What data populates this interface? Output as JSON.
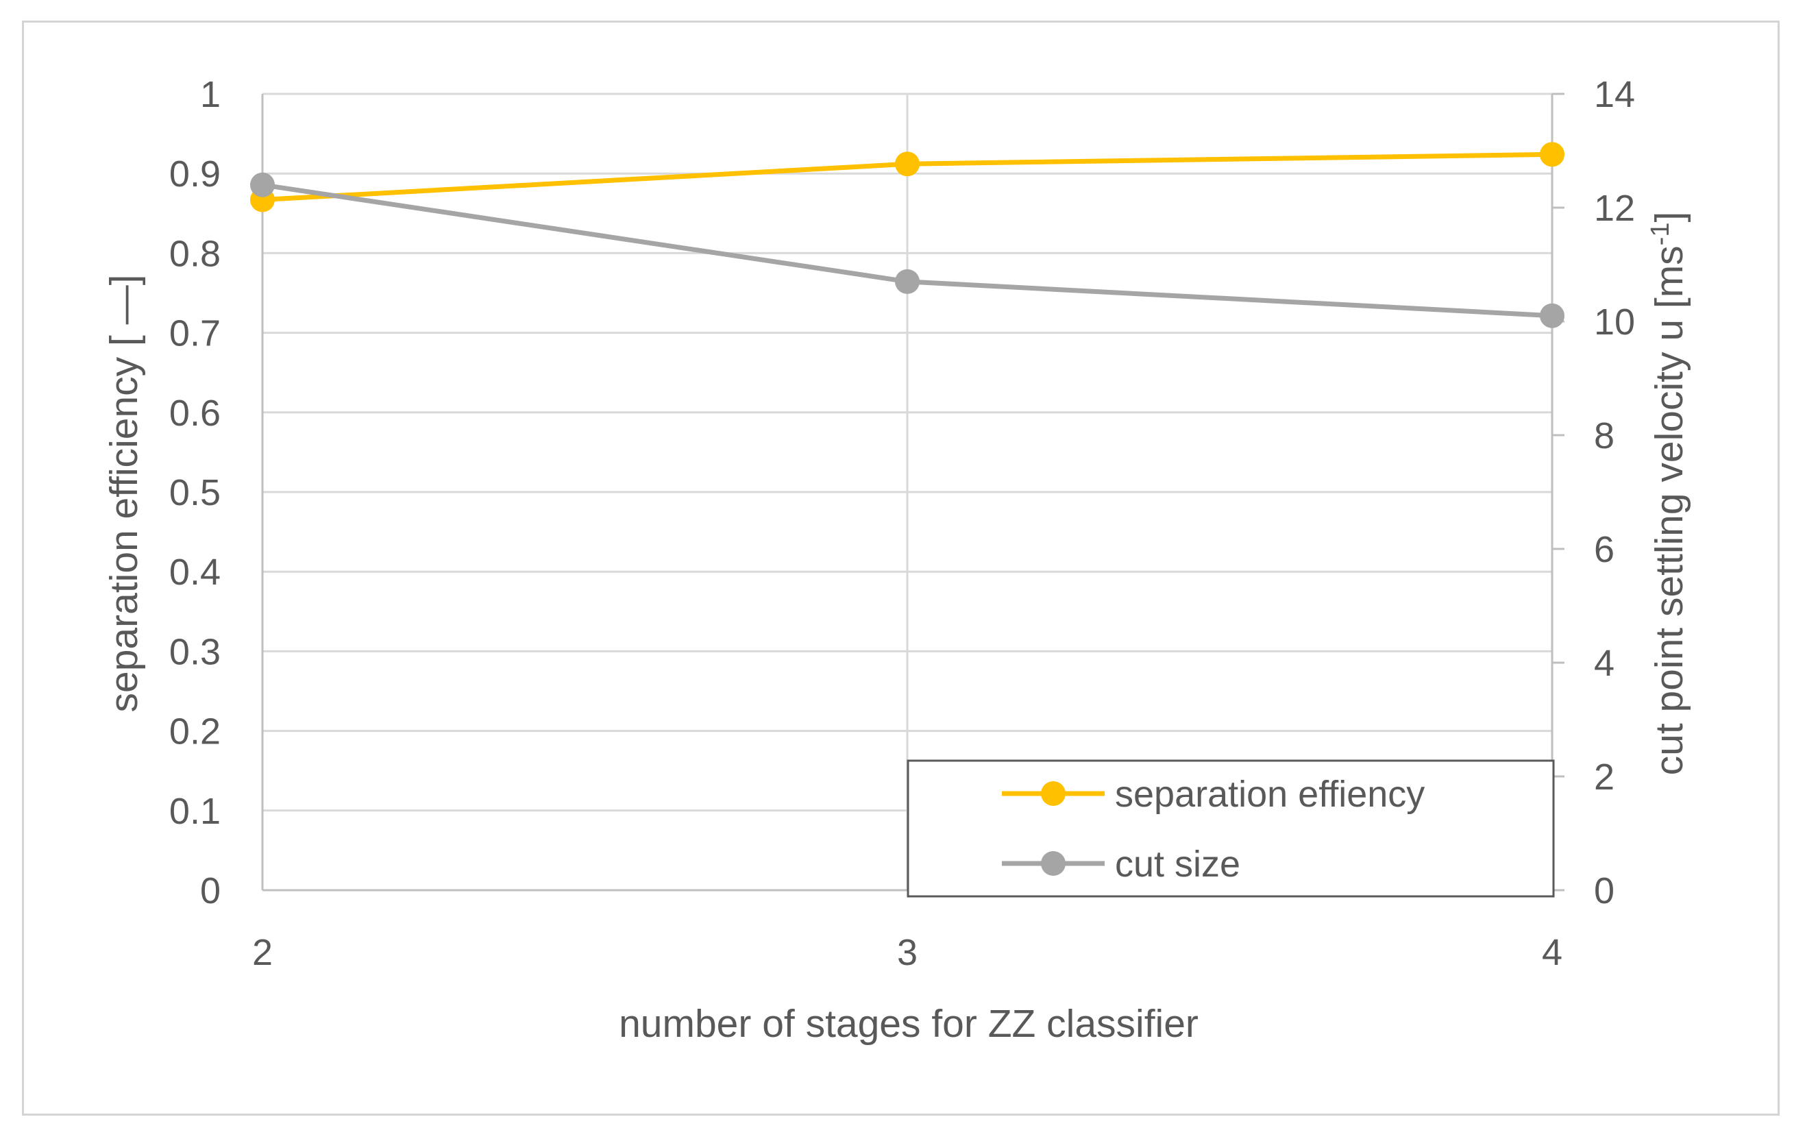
{
  "chart_data": {
    "type": "line",
    "xlabel": "number of stages for ZZ classifier",
    "ylabel_left": "separation efficiency [ —]",
    "ylabel_right_main": "cut point settling velocity u  [ms",
    "ylabel_right_sup": "-1",
    "ylabel_right_close": "]",
    "categories": [
      "2",
      "3",
      "4"
    ],
    "x": [
      2,
      3,
      4
    ],
    "y_left_range": [
      0,
      1
    ],
    "y_left_ticks": [
      "0",
      "0.1",
      "0.2",
      "0.3",
      "0.4",
      "0.5",
      "0.6",
      "0.7",
      "0.8",
      "0.9",
      "1"
    ],
    "y_right_range": [
      0,
      14
    ],
    "y_right_ticks": [
      "0",
      "2",
      "4",
      "6",
      "8",
      "10",
      "12",
      "14"
    ],
    "grid": true,
    "legend_position": "bottom-right",
    "series": [
      {
        "name": "separation effiency",
        "axis": "left",
        "color": "#FFC000",
        "values": [
          0.867,
          0.912,
          0.924
        ]
      },
      {
        "name": "cut size",
        "axis": "right",
        "color": "#A5A5A5",
        "values": [
          12.4,
          10.7,
          10.1
        ]
      }
    ]
  }
}
